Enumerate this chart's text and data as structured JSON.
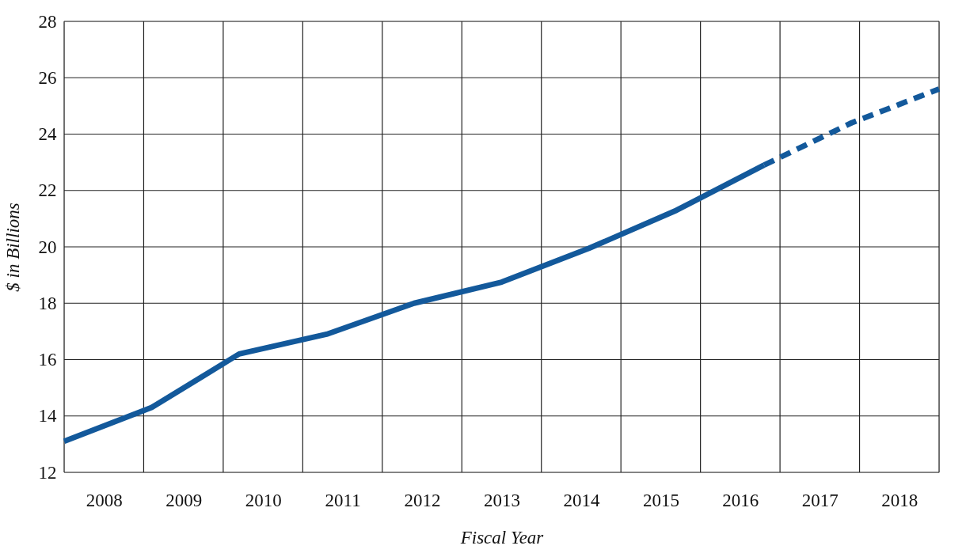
{
  "chart_data": {
    "type": "line",
    "xlabel": "Fiscal Year",
    "ylabel": "$ in Billions",
    "xlim": [
      2007.5,
      2018.5
    ],
    "ylim": [
      12,
      28
    ],
    "xticks": [
      {
        "value": 2007.5,
        "label": null
      },
      2008,
      {
        "value": 2008.5,
        "label": null
      },
      2009,
      {
        "value": 2009.5,
        "label": null
      },
      2010,
      {
        "value": 2010.5,
        "label": null
      },
      2011,
      {
        "value": 2011.5,
        "label": null
      },
      2012,
      {
        "value": 2012.5,
        "label": null
      },
      2013,
      {
        "value": 2013.5,
        "label": null
      },
      2014,
      {
        "value": 2014.5,
        "label": null
      },
      2015,
      {
        "value": 2015.5,
        "label": null
      },
      2016,
      {
        "value": 2016.5,
        "label": null
      },
      2017,
      {
        "value": 2017.5,
        "label": null
      },
      2018,
      {
        "value": 2018.5,
        "label": null
      }
    ],
    "yticks": [
      12,
      14,
      16,
      18,
      20,
      22,
      24,
      26,
      28
    ],
    "grid": true,
    "marker": "none",
    "series": [
      {
        "color": "#13599b",
        "line_style": "solid",
        "x": [
          2007.5,
          2008.6,
          2009.7,
          2010.8,
          2011.9,
          2013.0,
          2014.1,
          2015.2,
          2016.3
        ],
        "values": [
          13.1,
          14.3,
          16.2,
          16.9,
          18.0,
          18.75,
          19.95,
          21.3,
          22.9
        ]
      },
      {
        "color": "#13599b",
        "line_style": "dashed",
        "x": [
          2016.3,
          2017.4,
          2018.5
        ],
        "values": [
          22.9,
          24.4,
          25.6
        ]
      }
    ]
  }
}
